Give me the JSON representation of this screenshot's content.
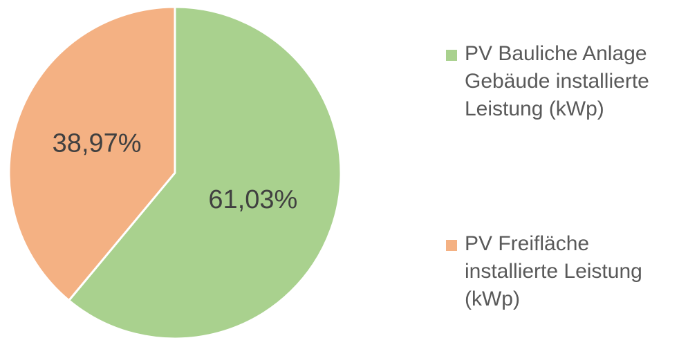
{
  "chart_data": {
    "type": "pie",
    "categories": [
      "PV Bauliche Anlage Gebäude installierte Leistung (kWp)",
      "PV Freifläche installierte Leistung (kWp)"
    ],
    "values": [
      61.03,
      38.97
    ],
    "value_labels": [
      "61,03%",
      "38,97%"
    ],
    "colors": [
      "#a9d18e",
      "#f4b183"
    ],
    "legend": "right"
  }
}
